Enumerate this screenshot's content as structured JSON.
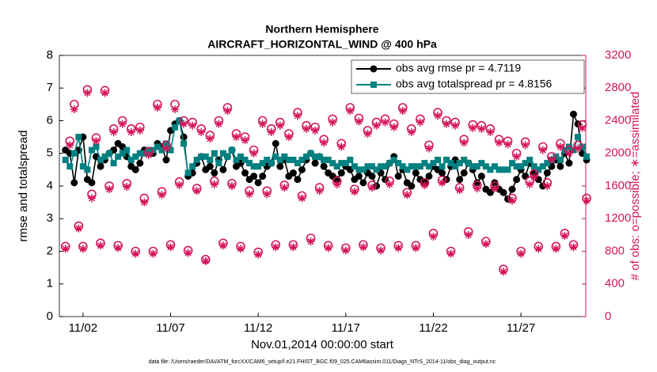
{
  "chart_data": {
    "type": "line",
    "title": "Northern Hemisphere",
    "subtitle": "AIRCRAFT_HORIZONTAL_WIND @ 400 hPa",
    "xlabel": "Nov.01,2014 00:00:00 start",
    "ylabel": "rmse and totalspread",
    "y2label": "# of obs: o=possible; ∗=assimilated",
    "footnote": "data file: /Users/raeder/DAI/ATM_forcXX/CAM6_setup/f.e21.FHIST_BGC.f09_025.CAM6assim.011/Diags_NTrS_2014-11/obs_diag_output.nc",
    "legend": "upper right",
    "xlim": [
      0.65,
      30.7
    ],
    "xticks": [
      {
        "value": 2,
        "label": "11/02"
      },
      {
        "value": 7,
        "label": "11/07"
      },
      {
        "value": 12,
        "label": "11/12"
      },
      {
        "value": 17,
        "label": "11/17"
      },
      {
        "value": 22,
        "label": "11/22"
      },
      {
        "value": 27,
        "label": "11/27"
      }
    ],
    "ylim": [
      0,
      8
    ],
    "yticks": [
      0,
      1,
      2,
      3,
      4,
      5,
      6,
      7,
      8
    ],
    "y2lim": [
      0,
      3200
    ],
    "y2ticks": [
      0,
      400,
      800,
      1200,
      1600,
      2000,
      2400,
      2800,
      3200
    ],
    "x": [
      1,
      1.25,
      1.5,
      1.75,
      2,
      2.25,
      2.5,
      2.75,
      3,
      3.25,
      3.5,
      3.75,
      4,
      4.25,
      4.5,
      4.75,
      5,
      5.25,
      5.5,
      5.75,
      6,
      6.25,
      6.5,
      6.75,
      7,
      7.25,
      7.5,
      7.75,
      8,
      8.25,
      8.5,
      8.75,
      9,
      9.25,
      9.5,
      9.75,
      10,
      10.25,
      10.5,
      10.75,
      11,
      11.25,
      11.5,
      11.75,
      12,
      12.25,
      12.5,
      12.75,
      13,
      13.25,
      13.5,
      13.75,
      14,
      14.25,
      14.5,
      14.75,
      15,
      15.25,
      15.5,
      15.75,
      16,
      16.25,
      16.5,
      16.75,
      17,
      17.25,
      17.5,
      17.75,
      18,
      18.25,
      18.5,
      18.75,
      19,
      19.25,
      19.5,
      19.75,
      20,
      20.25,
      20.5,
      20.75,
      21,
      21.25,
      21.5,
      21.75,
      22,
      22.25,
      22.5,
      22.75,
      23,
      23.25,
      23.5,
      23.75,
      24,
      24.25,
      24.5,
      24.75,
      25,
      25.25,
      25.5,
      25.75,
      26,
      26.25,
      26.5,
      26.75,
      27,
      27.25,
      27.5,
      27.75,
      28,
      28.25,
      28.5,
      28.75,
      29,
      29.25,
      29.5,
      29.75,
      30,
      30.25,
      30.5,
      30.75
    ],
    "series": [
      {
        "name": "obs avg rmse pr = 4.7119",
        "color": "#000000",
        "marker": "circle",
        "values": [
          5.1,
          5.0,
          4.1,
          5.1,
          5.5,
          4.2,
          4.1,
          4.9,
          4.6,
          4.8,
          5.0,
          5.1,
          5.3,
          5.2,
          4.9,
          4.6,
          4.5,
          4.7,
          5.1,
          5.0,
          5.0,
          5.3,
          5.2,
          4.8,
          5.7,
          5.9,
          6.0,
          5.5,
          4.3,
          4.4,
          4.7,
          4.9,
          4.5,
          4.6,
          4.4,
          4.8,
          4.5,
          4.9,
          5.1,
          4.6,
          4.7,
          4.4,
          4.2,
          4.3,
          4.1,
          4.3,
          4.6,
          4.7,
          5.3,
          4.6,
          4.8,
          4.3,
          4.4,
          4.2,
          4.5,
          4.8,
          5.0,
          4.7,
          4.9,
          4.6,
          4.4,
          4.3,
          4.2,
          4.4,
          4.6,
          4.5,
          4.2,
          4.3,
          4.1,
          4.4,
          4.3,
          4.0,
          4.4,
          4.2,
          4.7,
          4.9,
          4.3,
          4.5,
          4.1,
          4.0,
          4.4,
          4.2,
          4.1,
          4.3,
          4.6,
          4.5,
          4.4,
          4.2,
          4.6,
          4.8,
          4.2,
          4.4,
          4.7,
          4.5,
          4.1,
          4.3,
          3.9,
          3.8,
          4.1,
          3.9,
          3.8,
          3.6,
          3.9,
          4.2,
          4.5,
          4.3,
          4.7,
          4.4,
          4.2,
          4.0,
          4.4,
          4.6,
          4.8,
          4.6,
          5.0,
          4.7,
          6.2,
          5.9,
          5.0,
          4.8
        ]
      },
      {
        "name": "obs avg totalspread pr = 4.8156",
        "color": "#008080",
        "marker": "square",
        "values": [
          4.8,
          4.6,
          5.0,
          5.5,
          4.6,
          4.5,
          5.1,
          5.2,
          4.8,
          4.9,
          5.0,
          4.7,
          4.9,
          5.0,
          5.1,
          4.8,
          4.9,
          5.0,
          5.0,
          5.1,
          5.1,
          5.2,
          5.1,
          5.3,
          5.1,
          5.8,
          6.0,
          5.3,
          4.4,
          4.6,
          4.8,
          4.9,
          4.9,
          4.8,
          5.0,
          4.7,
          5.0,
          4.9,
          5.1,
          4.8,
          4.9,
          4.8,
          4.7,
          4.6,
          4.6,
          4.7,
          4.8,
          4.7,
          4.9,
          4.8,
          4.9,
          4.8,
          4.8,
          4.7,
          4.8,
          4.9,
          5.0,
          4.9,
          4.9,
          4.8,
          4.8,
          4.7,
          4.6,
          4.7,
          4.7,
          4.8,
          4.6,
          4.5,
          4.5,
          4.6,
          4.6,
          4.5,
          4.6,
          4.6,
          4.7,
          4.8,
          4.7,
          4.6,
          4.5,
          4.6,
          4.6,
          4.6,
          4.7,
          4.6,
          4.7,
          4.8,
          4.6,
          4.8,
          4.7,
          4.6,
          4.7,
          4.8,
          4.7,
          4.6,
          4.6,
          4.7,
          4.6,
          4.5,
          4.6,
          4.5,
          4.5,
          4.5,
          4.7,
          4.6,
          4.6,
          4.7,
          4.8,
          4.6,
          4.5,
          4.6,
          4.7,
          4.8,
          4.9,
          4.8,
          5.1,
          5.2,
          5.1,
          5.5,
          5.2,
          4.9
        ]
      },
      {
        "name": "possible",
        "color": "#d4145a",
        "marker": "open-circle",
        "axis": "y2",
        "values": [
          860,
          2150,
          2600,
          1110,
          860,
          2780,
          1500,
          2190,
          900,
          2770,
          1600,
          2300,
          870,
          2400,
          1630,
          2300,
          800,
          2320,
          1450,
          2020,
          800,
          2600,
          1530,
          2100,
          880,
          2600,
          1650,
          2400,
          810,
          2380,
          1570,
          2300,
          700,
          2220,
          1660,
          2400,
          900,
          2560,
          1630,
          2240,
          860,
          2200,
          1540,
          2040,
          790,
          2400,
          1540,
          2300,
          880,
          2380,
          1610,
          2240,
          880,
          2500,
          1480,
          2340,
          960,
          2320,
          1580,
          2170,
          870,
          2420,
          1660,
          2120,
          840,
          2560,
          1560,
          2430,
          880,
          2280,
          1610,
          2380,
          840,
          2420,
          1660,
          2360,
          870,
          2560,
          1520,
          2300,
          870,
          2420,
          1640,
          2100,
          1020,
          2500,
          1670,
          2400,
          800,
          2380,
          1580,
          2170,
          1040,
          2350,
          1610,
          2340,
          920,
          2300,
          1600,
          2170,
          580,
          2150,
          1450,
          2000,
          800,
          2140,
          1660,
          1750,
          860,
          2080,
          1640,
          1960,
          860,
          2120,
          1020,
          2040,
          880,
          2100,
          2350,
          1450
        ]
      },
      {
        "name": "assimilated",
        "color": "#d4145a",
        "marker": "asterisk",
        "axis": "y2",
        "values": [
          830,
          2100,
          2540,
          1080,
          830,
          2740,
          1450,
          2150,
          870,
          2740,
          1560,
          2260,
          840,
          2360,
          1590,
          2260,
          770,
          2280,
          1400,
          1980,
          770,
          2560,
          1490,
          2060,
          850,
          2540,
          1610,
          2360,
          780,
          2340,
          1540,
          2260,
          680,
          2180,
          1620,
          2360,
          870,
          2520,
          1600,
          2200,
          830,
          2160,
          1500,
          2000,
          760,
          2360,
          1500,
          2260,
          850,
          2340,
          1580,
          2200,
          850,
          2460,
          1450,
          2300,
          920,
          2280,
          1540,
          2130,
          840,
          2380,
          1620,
          2080,
          810,
          2520,
          1530,
          2390,
          850,
          2240,
          1580,
          2340,
          810,
          2380,
          1620,
          2320,
          840,
          2520,
          1490,
          2260,
          840,
          2380,
          1610,
          2060,
          980,
          2460,
          1640,
          2360,
          770,
          2340,
          1550,
          2130,
          1000,
          2310,
          1570,
          2300,
          890,
          2260,
          1570,
          2130,
          550,
          2110,
          1420,
          1960,
          770,
          2100,
          1620,
          1710,
          830,
          2040,
          1600,
          1920,
          830,
          2080,
          990,
          2000,
          850,
          2060,
          2310,
          1420
        ]
      }
    ]
  }
}
